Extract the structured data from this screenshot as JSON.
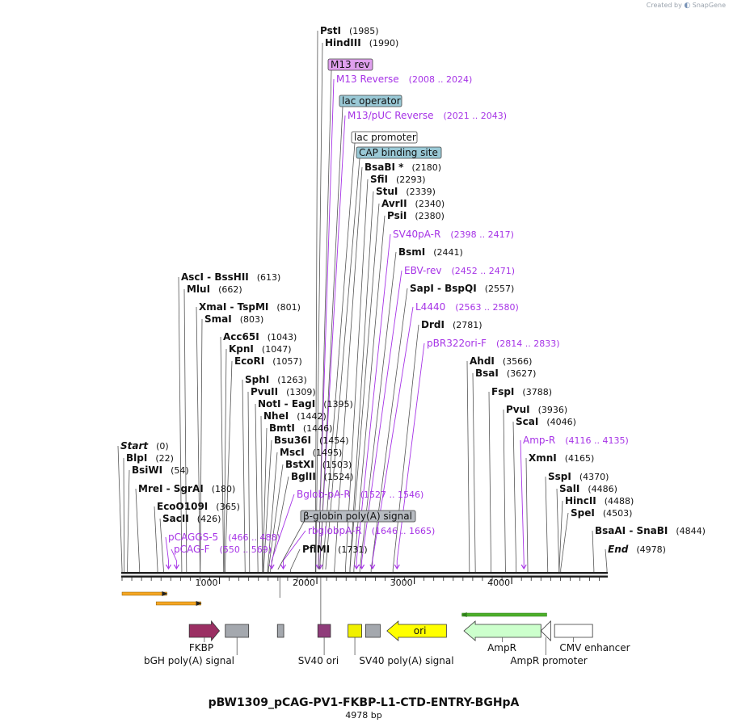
{
  "brand": {
    "created_by": "Created by",
    "app": "SnapGene"
  },
  "title": "pBW1309_pCAG-PV1-FKBP-L1-CTD-ENTRY-BGHpA",
  "length_label": "4978 bp",
  "scale": {
    "start_bp": 0,
    "end_bp": 4978
  },
  "ticks": [
    {
      "bp": 1000,
      "label": "1000"
    },
    {
      "bp": 2000,
      "label": "2000"
    },
    {
      "bp": 3000,
      "label": "3000"
    },
    {
      "bp": 4000,
      "label": "4000"
    }
  ],
  "enzymes": [
    {
      "name": "PstI",
      "pos": "(1985)",
      "bp": 1985
    },
    {
      "name": "HindIII",
      "pos": "(1990)",
      "bp": 1990
    },
    {
      "name": "BsaBI *",
      "pos": "(2180)",
      "bp": 2180
    },
    {
      "name": "SfiI",
      "pos": "(2293)",
      "bp": 2293
    },
    {
      "name": "StuI",
      "pos": "(2339)",
      "bp": 2339
    },
    {
      "name": "AvrII",
      "pos": "(2340)",
      "bp": 2340
    },
    {
      "name": "PsiI",
      "pos": "(2380)",
      "bp": 2380
    },
    {
      "name": "BsmI",
      "pos": "(2441)",
      "bp": 2441
    },
    {
      "name": "SapI  -  BspQI",
      "pos": "(2557)",
      "bp": 2557
    },
    {
      "name": "DrdI",
      "pos": "(2781)",
      "bp": 2781
    },
    {
      "name": "AscI  -  BssHII",
      "pos": "(613)",
      "bp": 613
    },
    {
      "name": "MluI",
      "pos": "(662)",
      "bp": 662
    },
    {
      "name": "XmaI  -  TspMI",
      "pos": "(801)",
      "bp": 801
    },
    {
      "name": "SmaI",
      "pos": "(803)",
      "bp": 803
    },
    {
      "name": "Acc65I",
      "pos": "(1043)",
      "bp": 1043
    },
    {
      "name": "KpnI",
      "pos": "(1047)",
      "bp": 1047
    },
    {
      "name": "EcoRI",
      "pos": "(1057)",
      "bp": 1057
    },
    {
      "name": "SphI",
      "pos": "(1263)",
      "bp": 1263
    },
    {
      "name": "PvuII",
      "pos": "(1309)",
      "bp": 1309
    },
    {
      "name": "NotI  -  EagI",
      "pos": "(1395)",
      "bp": 1395
    },
    {
      "name": "NheI",
      "pos": "(1442)",
      "bp": 1442
    },
    {
      "name": "BmtI",
      "pos": "(1446)",
      "bp": 1446
    },
    {
      "name": "Bsu36I",
      "pos": "(1454)",
      "bp": 1454
    },
    {
      "name": "MscI",
      "pos": "(1495)",
      "bp": 1495
    },
    {
      "name": "BstXI",
      "pos": "(1503)",
      "bp": 1503
    },
    {
      "name": "BglII",
      "pos": "(1524)",
      "bp": 1524
    },
    {
      "name": "PflMI",
      "pos": "(1731)",
      "bp": 1731
    },
    {
      "name": "Start",
      "pos": "(0)",
      "bp": 0,
      "italic": true
    },
    {
      "name": "BlpI",
      "pos": "(22)",
      "bp": 22
    },
    {
      "name": "BsiWI",
      "pos": "(54)",
      "bp": 54
    },
    {
      "name": "MreI  -  SgrAI",
      "pos": "(180)",
      "bp": 180
    },
    {
      "name": "EcoO109I",
      "pos": "(365)",
      "bp": 365
    },
    {
      "name": "SacII",
      "pos": "(426)",
      "bp": 426
    },
    {
      "name": "AhdI",
      "pos": "(3566)",
      "bp": 3566
    },
    {
      "name": "BsaI",
      "pos": "(3627)",
      "bp": 3627
    },
    {
      "name": "FspI",
      "pos": "(3788)",
      "bp": 3788
    },
    {
      "name": "PvuI",
      "pos": "(3936)",
      "bp": 3936
    },
    {
      "name": "ScaI",
      "pos": "(4046)",
      "bp": 4046
    },
    {
      "name": "XmnI",
      "pos": "(4165)",
      "bp": 4165
    },
    {
      "name": "SspI",
      "pos": "(4370)",
      "bp": 4370
    },
    {
      "name": "SalI",
      "pos": "(4486)",
      "bp": 4486
    },
    {
      "name": "HincII",
      "pos": "(4488)",
      "bp": 4488
    },
    {
      "name": "SpeI",
      "pos": "(4503)",
      "bp": 4503
    },
    {
      "name": "BsaAI  -  SnaBI",
      "pos": "(4844)",
      "bp": 4844
    },
    {
      "name": "End",
      "pos": "(4978)",
      "bp": 4978,
      "italic": true
    }
  ],
  "primers": [
    {
      "name": "M13 Reverse",
      "range": "(2008 .. 2024)",
      "bp": 2016
    },
    {
      "name": "M13/pUC Reverse",
      "range": "(2021 .. 2043)",
      "bp": 2032
    },
    {
      "name": "SV40pA-R",
      "range": "(2398 .. 2417)",
      "bp": 2407
    },
    {
      "name": "EBV-rev",
      "range": "(2452 .. 2471)",
      "bp": 2461
    },
    {
      "name": "L4440",
      "range": "(2563 .. 2580)",
      "bp": 2571
    },
    {
      "name": "pBR322ori-F",
      "range": "(2814 .. 2833)",
      "bp": 2823
    },
    {
      "name": "Amp-R",
      "range": "(4116 .. 4135)",
      "bp": 4125
    },
    {
      "name": "Bglob-pA-R",
      "range": "(1527 .. 1546)",
      "bp": 1536
    },
    {
      "name": "rbglobpA-R",
      "range": "(1646 .. 1665)",
      "bp": 1655
    },
    {
      "name": "pCAGGS-5",
      "range": "(466 .. 488)",
      "bp": 477
    },
    {
      "name": "pCAG-F",
      "range": "(550 .. 569)",
      "bp": 559
    }
  ],
  "boxed_features": [
    {
      "name": "M13 rev",
      "color": "#e0a0ee",
      "bp": 2016
    },
    {
      "name": "lac operator",
      "color": "#9ac9d6",
      "bp": 2030
    },
    {
      "name": "lac promoter",
      "color": "#ffffff",
      "bp": 2060
    },
    {
      "name": "CAP binding site",
      "color": "#9ac9d6",
      "bp": 2090
    },
    {
      "name": "β-globin poly(A) signal",
      "color": "#b8bcc2",
      "bp": 1600
    }
  ],
  "features": [
    {
      "name": "FKBP",
      "color": "#9b2f63",
      "start_bp": 690,
      "end_bp": 1000,
      "shape": "arrow-right"
    },
    {
      "name": "bGH poly(A) signal",
      "color": "#a4a8ae",
      "start_bp": 1060,
      "end_bp": 1300,
      "shape": "box"
    },
    {
      "name": "",
      "color": "#a4a8ae",
      "start_bp": 1595,
      "end_bp": 1660,
      "shape": "box"
    },
    {
      "name": "SV40 ori",
      "color": "#8f3c7a",
      "start_bp": 2010,
      "end_bp": 2140,
      "shape": "box"
    },
    {
      "name": "SV40 poly(A) signal",
      "color": "#f0f000",
      "start_bp": 2320,
      "end_bp": 2460,
      "shape": "box"
    },
    {
      "name": "",
      "color": "#a4a8ae",
      "start_bp": 2500,
      "end_bp": 2650,
      "shape": "box"
    },
    {
      "name": "ori",
      "color": "#ffff00",
      "start_bp": 2720,
      "end_bp": 3330,
      "shape": "arrow-left"
    },
    {
      "name": "AmpR",
      "color": "#ccffcc",
      "start_bp": 3510,
      "end_bp": 4300,
      "shape": "arrow-left"
    },
    {
      "name": "AmpR promoter",
      "color": "#ffffff",
      "start_bp": 4300,
      "end_bp": 4400,
      "shape": "arrow-left"
    },
    {
      "name": "CMV enhancer",
      "color": "#ffffff",
      "start_bp": 4440,
      "end_bp": 4830,
      "shape": "box"
    }
  ],
  "orfs": [
    {
      "color": "#f5a623",
      "start_bp": 0,
      "end_bp": 460
    },
    {
      "color": "#f5a623",
      "start_bp": 350,
      "end_bp": 810
    },
    {
      "color": "#4caf2a",
      "start_bp": 3490,
      "end_bp": 4360
    }
  ]
}
